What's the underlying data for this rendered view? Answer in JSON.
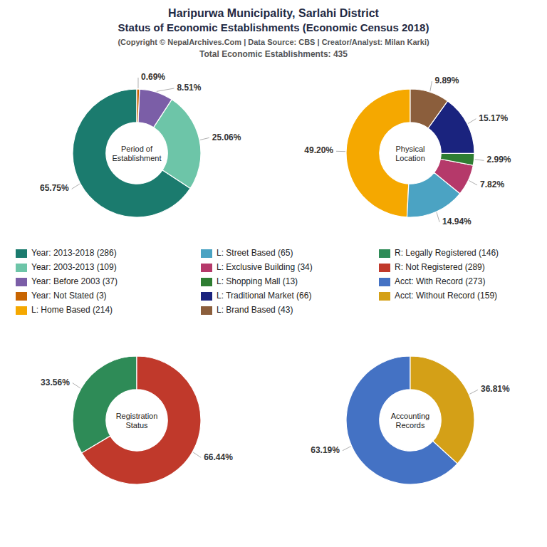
{
  "title": [
    "Haripurwa Municipality, Sarlahi District",
    "Status of Economic Establishments (Economic Census 2018)"
  ],
  "subtitle": [
    "(Copyright © NepalArchives.Com | Data Source: CBS | Creator/Analyst: Milan Karki)",
    "Total Economic Establishments: 435"
  ],
  "legend": "center",
  "chart_data": [
    {
      "type": "pie",
      "title": "Period of\nEstablishment",
      "categories": [
        "Year: 2013-2018 (286)",
        "Year: 2003-2013 (109)",
        "Year: Before 2003 (37)",
        "Year: Not Stated (3)"
      ],
      "values": [
        65.75,
        25.06,
        8.51,
        0.69
      ],
      "value_labels": [
        "65.75%",
        "25.06%",
        "8.51%",
        "0.69%"
      ],
      "colors": [
        "#1B7B6E",
        "#6DC5A8",
        "#7B5EA7",
        "#C86400"
      ],
      "data_labels": true
    },
    {
      "type": "pie",
      "title": "Physical\nLocation",
      "categories": [
        "L: Home Based (214)",
        "L: Street Based (65)",
        "L: Exclusive Building (34)",
        "L: Shopping Mall (13)",
        "L: Traditional Market (66)",
        "L: Brand Based (43)"
      ],
      "values": [
        49.2,
        14.94,
        7.82,
        2.99,
        15.17,
        9.89
      ],
      "value_labels": [
        "49.20%",
        "14.94%",
        "7.82%",
        "2.99%",
        "15.17%",
        "9.89%"
      ],
      "colors": [
        "#F5A800",
        "#4BA3C3",
        "#B5396A",
        "#2E7D32",
        "#1A237E",
        "#8B5E3C"
      ],
      "data_labels": true
    },
    {
      "type": "pie",
      "title": "Registration\nStatus",
      "categories": [
        "R: Legally Registered (146)",
        "R: Not Registered (289)"
      ],
      "values": [
        33.56,
        66.44
      ],
      "value_labels": [
        "33.56%",
        "66.44%"
      ],
      "colors": [
        "#2E8B57",
        "#C0392B"
      ],
      "data_labels": true
    },
    {
      "type": "pie",
      "title": "Accounting\nRecords",
      "categories": [
        "Acct: With Record (273)",
        "Acct: Without Record (159)"
      ],
      "values": [
        63.19,
        36.81
      ],
      "value_labels": [
        "63.19%",
        "36.81%"
      ],
      "colors": [
        "#4472C4",
        "#D4A017"
      ],
      "data_labels": true
    }
  ]
}
